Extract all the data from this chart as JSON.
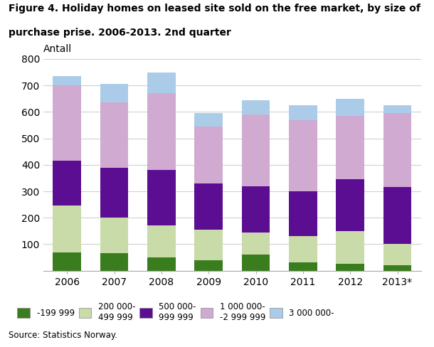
{
  "categories": [
    "2006",
    "2007",
    "2008",
    "2009",
    "2010",
    "2011",
    "2012",
    "2013*"
  ],
  "series": {
    "u199": [
      70,
      65,
      50,
      40,
      60,
      30,
      25,
      20
    ],
    "200": [
      175,
      135,
      120,
      115,
      85,
      100,
      125,
      80
    ],
    "500": [
      170,
      190,
      210,
      175,
      175,
      170,
      195,
      215
    ],
    "1000": [
      285,
      245,
      290,
      215,
      270,
      270,
      240,
      280
    ],
    "3000": [
      35,
      70,
      80,
      50,
      55,
      55,
      65,
      30
    ]
  },
  "colors": [
    "#3a7d1e",
    "#c8dba8",
    "#5b0e91",
    "#d0aad0",
    "#aacce8"
  ],
  "title_line1": "Figure 4. Holiday homes on leased site sold on the free market, by size of",
  "title_line2": "purchase prise. 2006-2013. 2nd quarter",
  "ylabel": "Antall",
  "ylim": [
    0,
    800
  ],
  "yticks": [
    0,
    100,
    200,
    300,
    400,
    500,
    600,
    700,
    800
  ],
  "source": "Source: Statistics Norway.",
  "legend_labels": [
    "-199 999",
    "200 000-\n499 999",
    "500 000-\n999 999",
    "1 000 000-\n-2 999 999",
    "3 000 000-"
  ],
  "background_color": "#ffffff",
  "grid_color": "#d0d0d0"
}
